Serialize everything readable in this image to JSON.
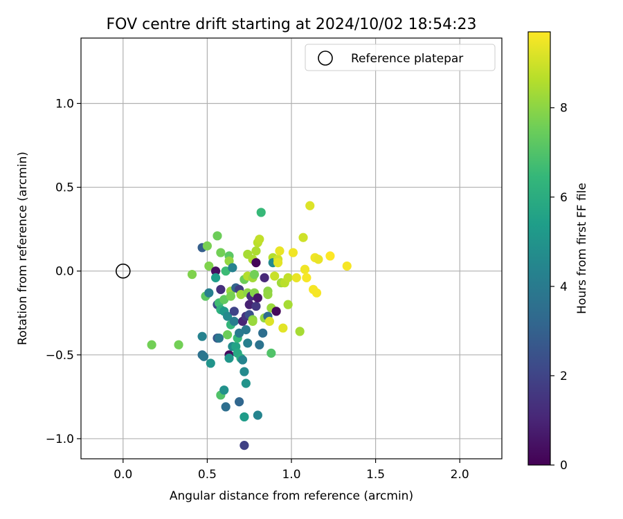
{
  "chart_data": {
    "type": "scatter",
    "title": "FOV centre drift starting at 2024/10/02 18:54:23",
    "xlabel": "Angular distance from reference (arcmin)",
    "ylabel": "Rotation from reference (arcmin)",
    "xlim": [
      -0.25,
      2.25
    ],
    "ylim": [
      -1.12,
      1.39
    ],
    "xticks": [
      0.0,
      0.5,
      1.0,
      1.5,
      2.0
    ],
    "xtick_labels": [
      "0.0",
      "0.5",
      "1.0",
      "1.5",
      "2.0"
    ],
    "yticks": [
      -1.0,
      -0.5,
      0.0,
      0.5,
      1.0
    ],
    "ytick_labels": [
      "−1.0",
      "−0.5",
      "0.0",
      "0.5",
      "1.0"
    ],
    "grid": true,
    "legend": {
      "placement": "top-right",
      "entries": [
        "Reference platepar"
      ]
    },
    "reference_point": {
      "x": 0.0,
      "y": 0.0,
      "marker": "open-circle",
      "color": "#000000"
    },
    "colorbar": {
      "label": "Hours from first FF file",
      "colormap": "viridis",
      "range": [
        0,
        9.7
      ],
      "ticks": [
        0,
        2,
        4,
        6,
        8
      ],
      "tick_labels": [
        "0",
        "2",
        "4",
        "6",
        "8"
      ],
      "stops": [
        "#440154",
        "#482878",
        "#3e4989",
        "#31688e",
        "#26828e",
        "#1f9e89",
        "#35b779",
        "#6ece58",
        "#b5de2b",
        "#fde725"
      ]
    },
    "points": [
      {
        "x": 0.17,
        "y": -0.44,
        "h": 7.6
      },
      {
        "x": 0.33,
        "y": -0.44,
        "h": 7.6
      },
      {
        "x": 0.41,
        "y": -0.02,
        "h": 7.8
      },
      {
        "x": 0.47,
        "y": 0.14,
        "h": 2.9
      },
      {
        "x": 0.47,
        "y": -0.5,
        "h": 3.6
      },
      {
        "x": 0.48,
        "y": -0.51,
        "h": 3.8
      },
      {
        "x": 0.47,
        "y": -0.39,
        "h": 4.3
      },
      {
        "x": 0.49,
        "y": -0.15,
        "h": 7.2
      },
      {
        "x": 0.5,
        "y": 0.15,
        "h": 7.7
      },
      {
        "x": 0.51,
        "y": 0.03,
        "h": 7.8
      },
      {
        "x": 0.51,
        "y": -0.13,
        "h": 4.2
      },
      {
        "x": 0.52,
        "y": -0.55,
        "h": 5.0
      },
      {
        "x": 0.55,
        "y": 0.0,
        "h": 0.4
      },
      {
        "x": 0.55,
        "y": -0.04,
        "h": 5.4
      },
      {
        "x": 0.56,
        "y": 0.21,
        "h": 7.5
      },
      {
        "x": 0.56,
        "y": -0.2,
        "h": 2.2
      },
      {
        "x": 0.56,
        "y": -0.4,
        "h": 2.6
      },
      {
        "x": 0.57,
        "y": -0.19,
        "h": 6.7
      },
      {
        "x": 0.57,
        "y": -0.4,
        "h": 3.8
      },
      {
        "x": 0.58,
        "y": 0.11,
        "h": 7.6
      },
      {
        "x": 0.58,
        "y": -0.11,
        "h": 1.3
      },
      {
        "x": 0.58,
        "y": -0.23,
        "h": 6.2
      },
      {
        "x": 0.58,
        "y": -0.74,
        "h": 7.0
      },
      {
        "x": 0.6,
        "y": -0.71,
        "h": 4.9
      },
      {
        "x": 0.6,
        "y": -0.24,
        "h": 5.2
      },
      {
        "x": 0.6,
        "y": -0.17,
        "h": 7.3
      },
      {
        "x": 0.61,
        "y": 0.0,
        "h": 6.6
      },
      {
        "x": 0.61,
        "y": -0.81,
        "h": 3.5
      },
      {
        "x": 0.62,
        "y": -0.38,
        "h": 7.5
      },
      {
        "x": 0.62,
        "y": -0.27,
        "h": 4.6
      },
      {
        "x": 0.63,
        "y": 0.09,
        "h": 7.2
      },
      {
        "x": 0.63,
        "y": 0.06,
        "h": 8.1
      },
      {
        "x": 0.63,
        "y": -0.5,
        "h": 0.3
      },
      {
        "x": 0.63,
        "y": -0.52,
        "h": 5.1
      },
      {
        "x": 0.64,
        "y": -0.12,
        "h": 8.2
      },
      {
        "x": 0.64,
        "y": -0.15,
        "h": 7.7
      },
      {
        "x": 0.64,
        "y": -0.32,
        "h": 6.4
      },
      {
        "x": 0.65,
        "y": 0.02,
        "h": 4.3
      },
      {
        "x": 0.65,
        "y": -0.45,
        "h": 4.7
      },
      {
        "x": 0.66,
        "y": -0.24,
        "h": 2.0
      },
      {
        "x": 0.66,
        "y": -0.3,
        "h": 4.1
      },
      {
        "x": 0.67,
        "y": -0.1,
        "h": 3.1
      },
      {
        "x": 0.67,
        "y": -0.45,
        "h": 5.6
      },
      {
        "x": 0.68,
        "y": -0.4,
        "h": 6.5
      },
      {
        "x": 0.68,
        "y": -0.49,
        "h": 5.8
      },
      {
        "x": 0.69,
        "y": -0.11,
        "h": 1.8
      },
      {
        "x": 0.69,
        "y": -0.37,
        "h": 4.0
      },
      {
        "x": 0.69,
        "y": -0.78,
        "h": 3.2
      },
      {
        "x": 0.7,
        "y": -0.14,
        "h": 8.3
      },
      {
        "x": 0.7,
        "y": -0.52,
        "h": 6.0
      },
      {
        "x": 0.71,
        "y": -0.3,
        "h": 1.0
      },
      {
        "x": 0.71,
        "y": -0.53,
        "h": 4.4
      },
      {
        "x": 0.72,
        "y": -0.05,
        "h": 7.5
      },
      {
        "x": 0.72,
        "y": -0.6,
        "h": 4.6
      },
      {
        "x": 0.72,
        "y": -0.87,
        "h": 5.3
      },
      {
        "x": 0.72,
        "y": -1.04,
        "h": 1.9
      },
      {
        "x": 0.73,
        "y": -0.27,
        "h": 1.5
      },
      {
        "x": 0.73,
        "y": -0.35,
        "h": 3.9
      },
      {
        "x": 0.73,
        "y": -0.67,
        "h": 5.0
      },
      {
        "x": 0.74,
        "y": 0.1,
        "h": 8.4
      },
      {
        "x": 0.74,
        "y": -0.03,
        "h": 8.6
      },
      {
        "x": 0.74,
        "y": -0.13,
        "h": 8.0
      },
      {
        "x": 0.74,
        "y": -0.43,
        "h": 4.2
      },
      {
        "x": 0.75,
        "y": -0.2,
        "h": 0.9
      },
      {
        "x": 0.75,
        "y": -0.26,
        "h": 2.4
      },
      {
        "x": 0.76,
        "y": -0.15,
        "h": 1.2
      },
      {
        "x": 0.77,
        "y": 0.07,
        "h": 8.5
      },
      {
        "x": 0.77,
        "y": -0.04,
        "h": 8.3
      },
      {
        "x": 0.77,
        "y": -0.29,
        "h": 7.9
      },
      {
        "x": 0.77,
        "y": -0.3,
        "h": 8.2
      },
      {
        "x": 0.78,
        "y": -0.02,
        "h": 7.6
      },
      {
        "x": 0.78,
        "y": -0.13,
        "h": 7.9
      },
      {
        "x": 0.79,
        "y": 0.05,
        "h": 0.1
      },
      {
        "x": 0.79,
        "y": 0.12,
        "h": 8.5
      },
      {
        "x": 0.79,
        "y": -0.21,
        "h": 1.6
      },
      {
        "x": 0.8,
        "y": 0.17,
        "h": 8.7
      },
      {
        "x": 0.8,
        "y": -0.16,
        "h": 0.6
      },
      {
        "x": 0.8,
        "y": -0.86,
        "h": 4.4
      },
      {
        "x": 0.81,
        "y": 0.19,
        "h": 8.8
      },
      {
        "x": 0.81,
        "y": -0.44,
        "h": 3.7
      },
      {
        "x": 0.82,
        "y": 0.35,
        "h": 6.5
      },
      {
        "x": 0.83,
        "y": -0.37,
        "h": 3.5
      },
      {
        "x": 0.84,
        "y": -0.04,
        "h": 1.1
      },
      {
        "x": 0.84,
        "y": -0.28,
        "h": 8.1
      },
      {
        "x": 0.86,
        "y": -0.12,
        "h": 8.0
      },
      {
        "x": 0.86,
        "y": -0.14,
        "h": 8.1
      },
      {
        "x": 0.86,
        "y": -0.27,
        "h": 3.4
      },
      {
        "x": 0.87,
        "y": -0.3,
        "h": 9.2
      },
      {
        "x": 0.88,
        "y": -0.22,
        "h": 8.2
      },
      {
        "x": 0.88,
        "y": -0.49,
        "h": 7.0
      },
      {
        "x": 0.89,
        "y": 0.08,
        "h": 8.6
      },
      {
        "x": 0.89,
        "y": 0.05,
        "h": 4.6
      },
      {
        "x": 0.9,
        "y": -0.03,
        "h": 8.9
      },
      {
        "x": 0.91,
        "y": -0.24,
        "h": 0.2
      },
      {
        "x": 0.92,
        "y": 0.07,
        "h": 9.0
      },
      {
        "x": 0.92,
        "y": 0.05,
        "h": 9.3
      },
      {
        "x": 0.93,
        "y": 0.12,
        "h": 9.4
      },
      {
        "x": 0.94,
        "y": -0.07,
        "h": 8.3
      },
      {
        "x": 0.95,
        "y": -0.34,
        "h": 9.3
      },
      {
        "x": 0.96,
        "y": -0.07,
        "h": 8.7
      },
      {
        "x": 0.98,
        "y": -0.04,
        "h": 8.8
      },
      {
        "x": 0.98,
        "y": -0.2,
        "h": 8.4
      },
      {
        "x": 1.01,
        "y": 0.11,
        "h": 9.5
      },
      {
        "x": 1.03,
        "y": -0.04,
        "h": 9.4
      },
      {
        "x": 1.05,
        "y": -0.36,
        "h": 8.4
      },
      {
        "x": 1.07,
        "y": 0.2,
        "h": 9.0
      },
      {
        "x": 1.08,
        "y": 0.01,
        "h": 9.5
      },
      {
        "x": 1.09,
        "y": -0.04,
        "h": 9.6
      },
      {
        "x": 1.11,
        "y": 0.39,
        "h": 9.2
      },
      {
        "x": 1.13,
        "y": -0.11,
        "h": 9.6
      },
      {
        "x": 1.14,
        "y": 0.08,
        "h": 9.5
      },
      {
        "x": 1.15,
        "y": -0.13,
        "h": 9.6
      },
      {
        "x": 1.16,
        "y": 0.07,
        "h": 9.4
      },
      {
        "x": 1.23,
        "y": 0.09,
        "h": 9.7
      },
      {
        "x": 1.33,
        "y": 0.03,
        "h": 9.6
      }
    ]
  }
}
